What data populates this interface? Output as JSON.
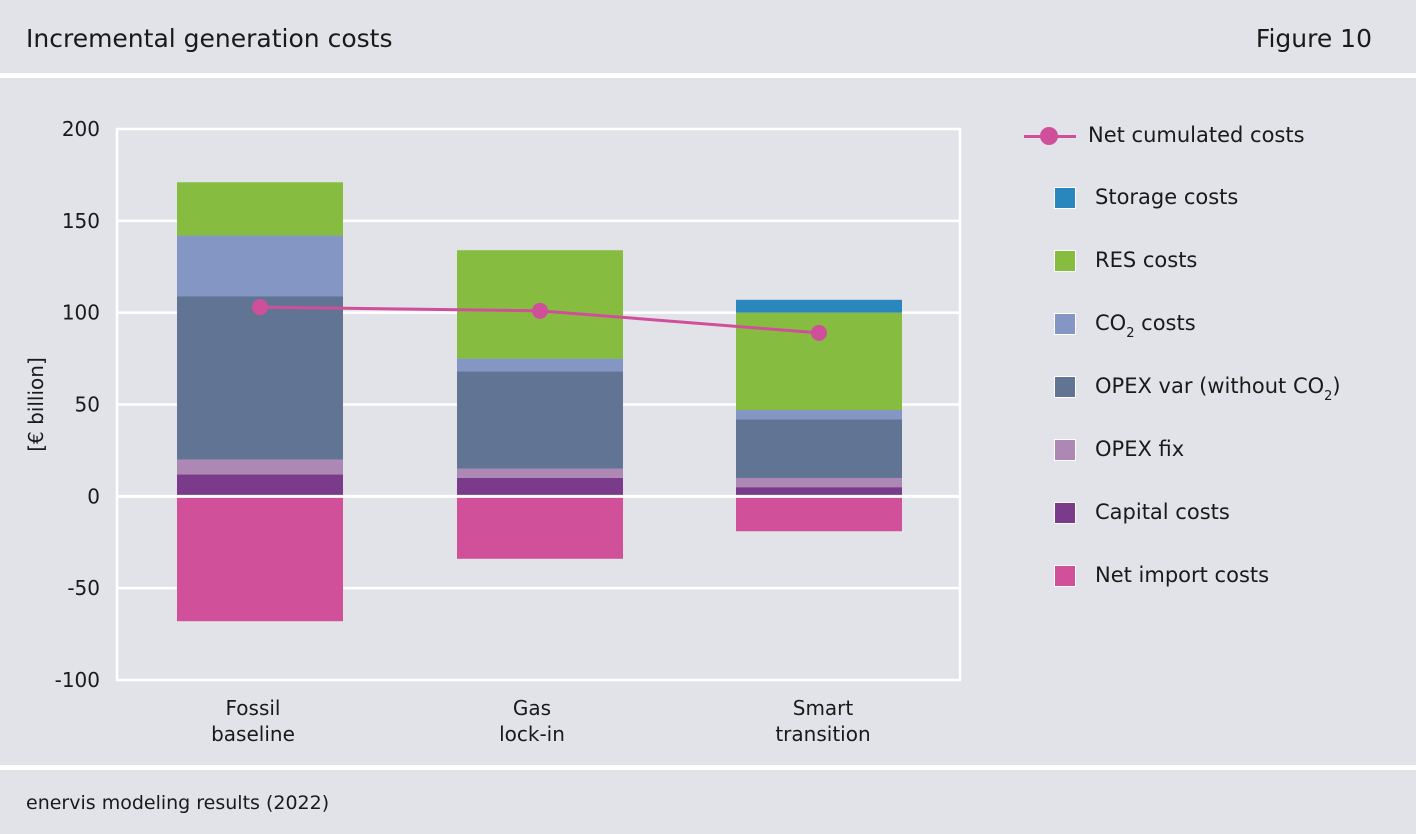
{
  "header": {
    "title": "Incremental generation costs",
    "figure": "Figure 10"
  },
  "footer": {
    "source": "enervis modeling results (2022)"
  },
  "legend": {
    "line": "Net cumulated costs",
    "items": [
      {
        "label_main": "Storage costs",
        "label_sub": "",
        "label_tail": ""
      },
      {
        "label_main": "RES costs",
        "label_sub": "",
        "label_tail": ""
      },
      {
        "label_main": "CO",
        "label_sub": "2",
        "label_tail": " costs"
      },
      {
        "label_main": "OPEX var (without CO",
        "label_sub": "2",
        "label_tail": ")"
      },
      {
        "label_main": "OPEX fix",
        "label_sub": "",
        "label_tail": ""
      },
      {
        "label_main": "Capital costs",
        "label_sub": "",
        "label_tail": ""
      },
      {
        "label_main": "Net import costs",
        "label_sub": "",
        "label_tail": ""
      }
    ]
  },
  "chart_data": {
    "type": "bar",
    "stacked": true,
    "title": "Incremental generation costs",
    "ylabel": "[€ billion]",
    "ylim": [
      -100,
      200
    ],
    "yticks": [
      200,
      150,
      100,
      50,
      0,
      -50,
      -100
    ],
    "grid": true,
    "legend_position": "right",
    "categories": [
      [
        "Fossil",
        "baseline"
      ],
      [
        "Gas",
        "lock-in"
      ],
      [
        "Smart",
        "transition"
      ]
    ],
    "series": [
      {
        "name": "Net import costs",
        "color": "#d0519a",
        "values": [
          -68,
          -34,
          -19
        ]
      },
      {
        "name": "Capital costs",
        "color": "#7a3b8a",
        "values": [
          12,
          10,
          5
        ]
      },
      {
        "name": "OPEX fix",
        "color": "#ad88b5",
        "values": [
          8,
          5,
          5
        ]
      },
      {
        "name": "OPEX var (without CO2)",
        "color": "#627494",
        "values": [
          89,
          53,
          32
        ]
      },
      {
        "name": "CO2 costs",
        "color": "#8496c4",
        "values": [
          33,
          7,
          5
        ]
      },
      {
        "name": "RES costs",
        "color": "#86bd41",
        "values": [
          29,
          59,
          53
        ]
      },
      {
        "name": "Storage costs",
        "color": "#2a87be",
        "values": [
          0,
          0,
          7
        ]
      }
    ],
    "line_series": {
      "name": "Net cumulated costs",
      "color": "#cf4f9a",
      "values": [
        103,
        101,
        89
      ]
    }
  }
}
